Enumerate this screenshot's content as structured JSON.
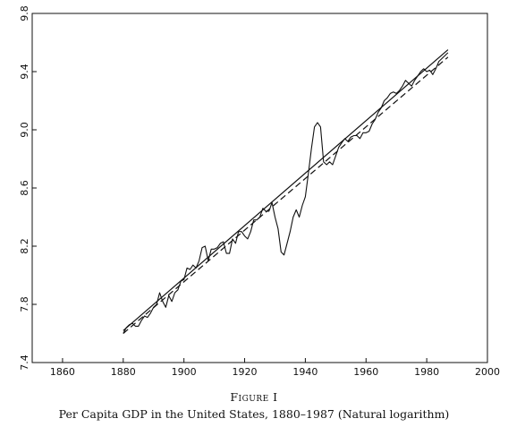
{
  "figure_label": "Figure I",
  "figure_title": "Per Capita GDP in the United States, 1880–1987 (Natural logarithm)",
  "chart_data": {
    "type": "line",
    "title": "",
    "xlabel": "",
    "ylabel": "",
    "xlim": [
      1850,
      2000
    ],
    "ylim": [
      7.4,
      9.8
    ],
    "x_ticks": [
      1860,
      1880,
      1900,
      1920,
      1940,
      1960,
      1980,
      2000
    ],
    "y_ticks": [
      7.4,
      7.8,
      8.2,
      8.6,
      9.0,
      9.4,
      9.8
    ],
    "grid": false,
    "legend": "none",
    "series": [
      {
        "style": "solid",
        "x": [
          1880,
          1881,
          1882,
          1883,
          1884,
          1885,
          1886,
          1887,
          1888,
          1889,
          1890,
          1891,
          1892,
          1893,
          1894,
          1895,
          1896,
          1897,
          1898,
          1899,
          1900,
          1901,
          1902,
          1903,
          1904,
          1905,
          1906,
          1907,
          1908,
          1909,
          1910,
          1911,
          1912,
          1913,
          1914,
          1915,
          1916,
          1917,
          1918,
          1919,
          1920,
          1921,
          1922,
          1923,
          1924,
          1925,
          1926,
          1927,
          1928,
          1929,
          1930,
          1931,
          1932,
          1933,
          1934,
          1935,
          1936,
          1937,
          1938,
          1939,
          1940,
          1941,
          1942,
          1943,
          1944,
          1945,
          1946,
          1947,
          1948,
          1949,
          1950,
          1951,
          1952,
          1953,
          1954,
          1955,
          1956,
          1957,
          1958,
          1959,
          1960,
          1961,
          1962,
          1963,
          1964,
          1965,
          1966,
          1967,
          1968,
          1969,
          1970,
          1971,
          1972,
          1973,
          1974,
          1975,
          1976,
          1977,
          1978,
          1979,
          1980,
          1981,
          1982,
          1983,
          1984,
          1985,
          1986,
          1987
        ],
        "values": [
          7.6,
          7.64,
          7.66,
          7.67,
          7.65,
          7.65,
          7.69,
          7.72,
          7.71,
          7.74,
          7.78,
          7.8,
          7.88,
          7.82,
          7.78,
          7.86,
          7.82,
          7.88,
          7.9,
          7.96,
          7.97,
          8.05,
          8.04,
          8.07,
          8.05,
          8.1,
          8.19,
          8.2,
          8.1,
          8.18,
          8.18,
          8.19,
          8.22,
          8.23,
          8.15,
          8.15,
          8.25,
          8.22,
          8.3,
          8.3,
          8.27,
          8.25,
          8.3,
          8.38,
          8.38,
          8.4,
          8.46,
          8.44,
          8.44,
          8.5,
          8.4,
          8.32,
          8.16,
          8.14,
          8.22,
          8.3,
          8.4,
          8.45,
          8.4,
          8.48,
          8.54,
          8.7,
          8.87,
          9.02,
          9.05,
          9.02,
          8.78,
          8.76,
          8.78,
          8.76,
          8.82,
          8.88,
          8.91,
          8.94,
          8.92,
          8.95,
          8.96,
          8.96,
          8.94,
          8.98,
          8.98,
          8.99,
          9.04,
          9.07,
          9.12,
          9.15,
          9.2,
          9.22,
          9.25,
          9.26,
          9.25,
          9.27,
          9.3,
          9.34,
          9.32,
          9.3,
          9.34,
          9.37,
          9.4,
          9.42,
          9.4,
          9.41,
          9.38,
          9.42,
          9.47,
          9.49,
          9.51,
          9.53
        ]
      },
      {
        "style": "trend-solid",
        "x": [
          1880,
          1987
        ],
        "values": [
          7.62,
          9.55
        ]
      },
      {
        "style": "trend-dashed",
        "x": [
          1880,
          1987
        ],
        "values": [
          7.6,
          9.5
        ]
      }
    ]
  }
}
